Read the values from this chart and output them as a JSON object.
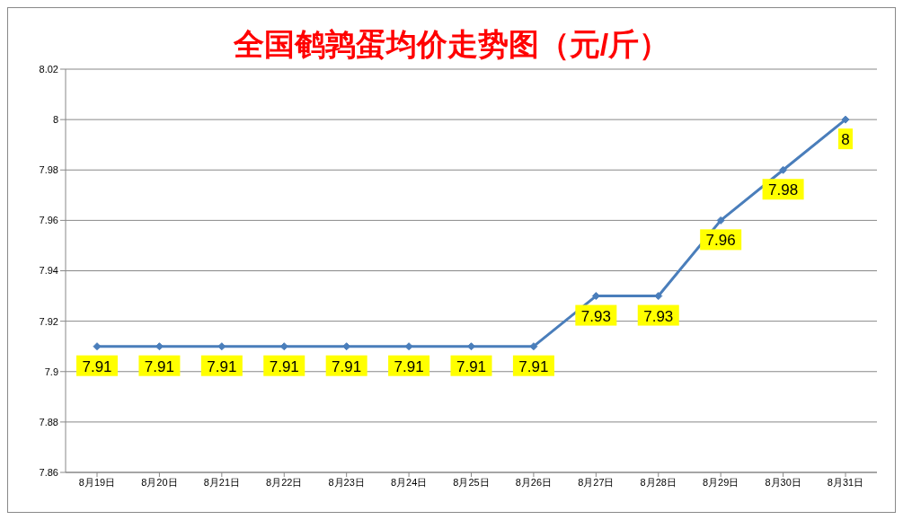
{
  "chart_data": {
    "type": "line",
    "title": "全国鹌鹑蛋均价走势图（元/斤）",
    "categories": [
      "8月19日",
      "8月20日",
      "8月21日",
      "8月22日",
      "8月23日",
      "8月24日",
      "8月25日",
      "8月26日",
      "8月27日",
      "8月28日",
      "8月29日",
      "8月30日",
      "8月31日"
    ],
    "series": [
      {
        "color": "#4a7ebb",
        "values": [
          7.91,
          7.91,
          7.91,
          7.91,
          7.91,
          7.91,
          7.91,
          7.91,
          7.93,
          7.93,
          7.96,
          7.98,
          8
        ]
      }
    ],
    "ylim": [
      7.86,
      8.02
    ],
    "yticks": [
      7.86,
      7.88,
      7.9,
      7.92,
      7.94,
      7.96,
      7.98,
      8,
      8.02
    ],
    "grid": "y",
    "marker": "diamond",
    "line_style": "solid",
    "data_labels": true
  }
}
